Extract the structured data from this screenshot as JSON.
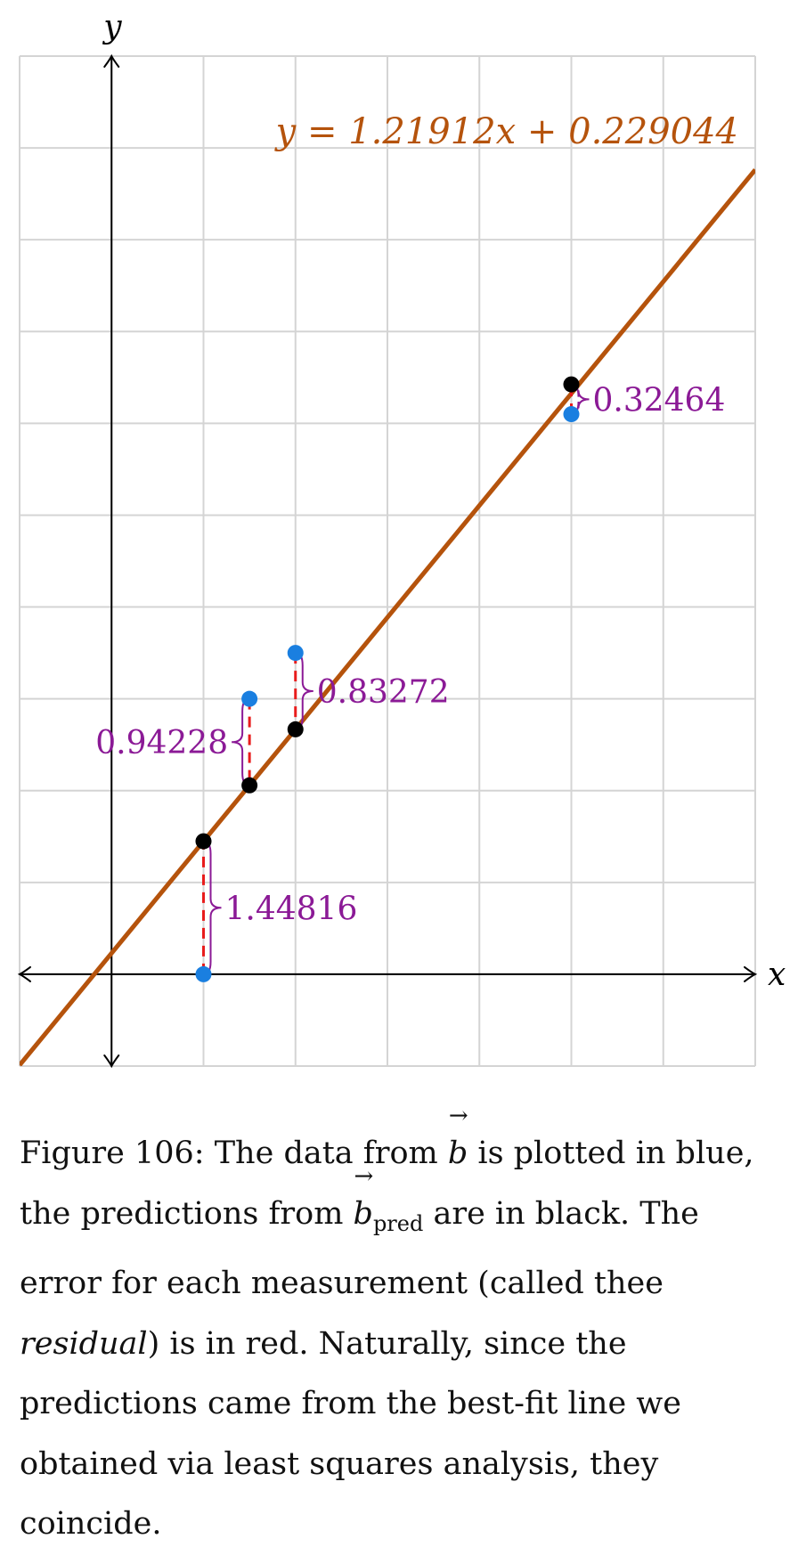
{
  "chart_data": {
    "type": "scatter",
    "xlabel": "x",
    "ylabel": "y",
    "xlim": [
      -1,
      7
    ],
    "ylim": [
      -1,
      10
    ],
    "grid": true,
    "fit_line": {
      "slope": 1.21912,
      "intercept": 0.229044,
      "label": "y = 1.21912x + 0.229044",
      "color": "#b5530c"
    },
    "series": [
      {
        "points": [
          {
            "x": 1,
            "y": 0
          },
          {
            "x": 1.5,
            "y": 3.0
          },
          {
            "x": 2,
            "y": 3.5
          },
          {
            "x": 5,
            "y": 6.1
          }
        ],
        "color": "#1a7fe0"
      },
      {
        "points": [
          {
            "x": 1,
            "y": 1.44816
          },
          {
            "x": 1.5,
            "y": 2.05772
          },
          {
            "x": 2,
            "y": 2.66728
          },
          {
            "x": 5,
            "y": 6.42464
          }
        ],
        "color": "#000000"
      }
    ],
    "residuals": [
      {
        "x": 1,
        "value": "1.44816",
        "side": "right"
      },
      {
        "x": 1.5,
        "value": "0.94228",
        "side": "left"
      },
      {
        "x": 2,
        "value": "0.83272",
        "side": "right"
      },
      {
        "x": 5,
        "value": "0.32464",
        "side": "right"
      }
    ],
    "residual_color": "#e81c1c",
    "brace_color": "#8b1a96"
  },
  "caption": {
    "part1": "Figure 106: The data from ",
    "vec_b": "b",
    "part2": " is plotted in blue, the predictions from ",
    "vec_bpred_base": "b",
    "vec_bpred_sub": "pred",
    "part3": " are in black. The error for each measurement (called thee ",
    "emphasis": "residual",
    "part4": ") is in red. Naturally, since the predictions came from the best-fit line we obtained via least squares analysis, they coincide."
  }
}
